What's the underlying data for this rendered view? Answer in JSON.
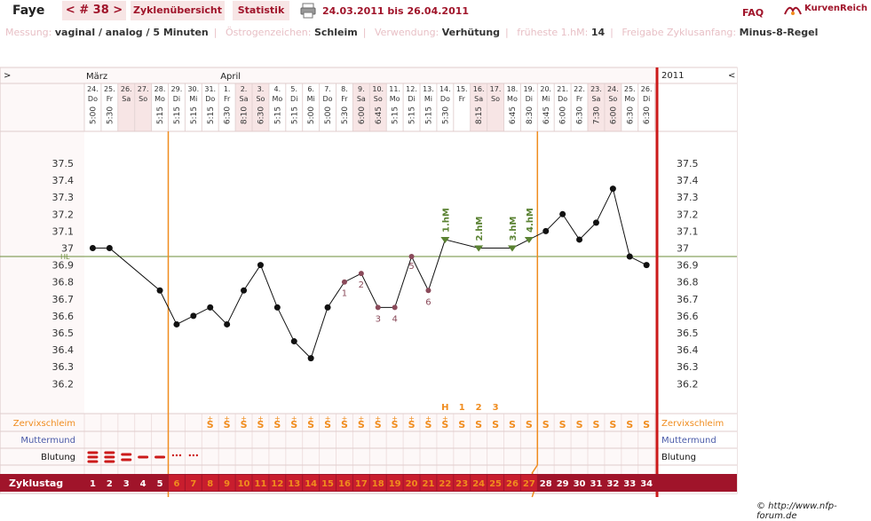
{
  "header": {
    "name": "Faye",
    "cycle_tab": "< # 38 >",
    "overview_tab": "Zyklenübersicht",
    "stats_tab": "Statistik",
    "date_range": "24.03.2011 bis 26.04.2011",
    "faq": "FAQ",
    "brand": "KurvenReich"
  },
  "info": {
    "messung_label": "Messung:",
    "messung_value": "vaginal / analog / 5 Minuten",
    "oestrogen_label": "Östrogenzeichen:",
    "oestrogen_value": "Schleim",
    "verwendung_label": "Verwendung:",
    "verwendung_value": "Verhütung",
    "hm_label": "früheste 1.hM:",
    "hm_value": "14",
    "freigabe_label": "Freigabe Zyklusanfang:",
    "freigabe_value": "Minus-8-Regel"
  },
  "chart_data": {
    "type": "line",
    "months": [
      {
        "label": "März",
        "start_day": 1
      },
      {
        "label": "April",
        "start_day": 9
      }
    ],
    "year": "2011",
    "nav_left": ">",
    "nav_right": "<",
    "dates": [
      "24.",
      "25.",
      "26.",
      "27.",
      "28.",
      "29.",
      "30.",
      "31.",
      "1.",
      "2.",
      "3.",
      "4.",
      "5.",
      "6.",
      "7.",
      "8.",
      "9.",
      "10.",
      "11.",
      "12.",
      "13.",
      "14.",
      "15.",
      "16.",
      "17.",
      "18.",
      "19.",
      "20.",
      "21.",
      "22.",
      "23.",
      "24.",
      "25.",
      "26."
    ],
    "weekdays": [
      "Do",
      "Fr",
      "Sa",
      "So",
      "Mo",
      "Di",
      "Mi",
      "Do",
      "Fr",
      "Sa",
      "So",
      "Mo",
      "Di",
      "Mi",
      "Do",
      "Fr",
      "Sa",
      "So",
      "Mo",
      "Di",
      "Mi",
      "Do",
      "Fr",
      "Sa",
      "So",
      "Mo",
      "Di",
      "Mi",
      "Do",
      "Fr",
      "Sa",
      "So",
      "Mo",
      "Di"
    ],
    "times": [
      "5:00",
      "5:30",
      "",
      "",
      "5:15",
      "5:15",
      "5:15",
      "5:15",
      "6:30",
      "8:10",
      "6:30",
      "5:15",
      "5:15",
      "5:00",
      "5:00",
      "5:30",
      "6:00",
      "6:45",
      "5:15",
      "5:15",
      "5:15",
      "5:30",
      "",
      "8:15",
      "",
      "6:45",
      "8:30",
      "6:45",
      "6:00",
      "6:30",
      "7:30",
      "6:00",
      "6:30",
      "6:30"
    ],
    "temps": [
      37.0,
      37.0,
      null,
      null,
      36.75,
      36.55,
      36.6,
      36.65,
      36.55,
      36.75,
      36.9,
      36.65,
      36.45,
      36.35,
      36.65,
      36.8,
      36.85,
      36.65,
      36.65,
      36.95,
      36.75,
      37.05,
      null,
      37.0,
      null,
      37.0,
      37.05,
      37.1,
      37.2,
      37.05,
      37.15,
      37.35,
      36.95,
      36.9
    ],
    "excluded_days": [
      16,
      17,
      18,
      19,
      20,
      21
    ],
    "hm_days": [
      22,
      24,
      26,
      27
    ],
    "hm_labels": [
      "1.hM",
      "2.hM",
      "3.hM",
      "4.hM"
    ],
    "low_labels": [
      "1",
      "2",
      "3",
      "4",
      "5",
      "6"
    ],
    "low_label_days": [
      16,
      17,
      18,
      19,
      20,
      21
    ],
    "hl_value": 36.95,
    "hl_label": "HL",
    "y_ticks": [
      "37.5",
      "37.4",
      "37.3",
      "37.2",
      "37.1",
      "37",
      "36.9",
      "36.8",
      "36.7",
      "36.6",
      "36.5",
      "36.4",
      "36.3",
      "36.2"
    ],
    "ylim": [
      36.2,
      37.5
    ],
    "vertical_markers": [
      6,
      28
    ],
    "peak_labels": [
      {
        "day": 22,
        "text": "H"
      },
      {
        "day": 23,
        "text": "1"
      },
      {
        "day": 24,
        "text": "2"
      },
      {
        "day": 25,
        "text": "3"
      }
    ],
    "mucus_plus_days": [
      8,
      9,
      10,
      11,
      12,
      13,
      14,
      15,
      16,
      17,
      18,
      19,
      20,
      21,
      22
    ],
    "mucus_s_days": [
      8,
      9,
      10,
      11,
      12,
      13,
      14,
      15,
      16,
      17,
      18,
      19,
      20,
      21,
      22,
      23,
      24,
      25,
      26,
      27,
      28,
      29,
      30,
      31,
      32,
      33,
      34
    ],
    "mucus_s": "S",
    "mucus_plus": "+",
    "bleeding": [
      3,
      3,
      2,
      1,
      1,
      0.5,
      0.5
    ],
    "row_labels": {
      "mucus": "Zervixschleim",
      "cervix": "Muttermund",
      "bleeding": "Blutung",
      "cycle_day": "Zyklustag"
    },
    "cycle_days": [
      "1",
      "2",
      "3",
      "4",
      "5",
      "6",
      "7",
      "8",
      "9",
      "10",
      "11",
      "12",
      "13",
      "14",
      "15",
      "16",
      "17",
      "18",
      "19",
      "20",
      "21",
      "22",
      "23",
      "24",
      "25",
      "26",
      "27",
      "28",
      "29",
      "30",
      "31",
      "32",
      "33",
      "34"
    ],
    "colors": {
      "accent": "#a0142a",
      "orange": "#f08c1e",
      "green": "#5a8232",
      "hl_line": "#6b8c3a",
      "excluded": "#8a4a5a",
      "weekend_bg": "#f7e5e5",
      "cervix_blue": "#4a5aa8"
    }
  },
  "footer": {
    "copyright": "© http://www.nfp-forum.de"
  }
}
